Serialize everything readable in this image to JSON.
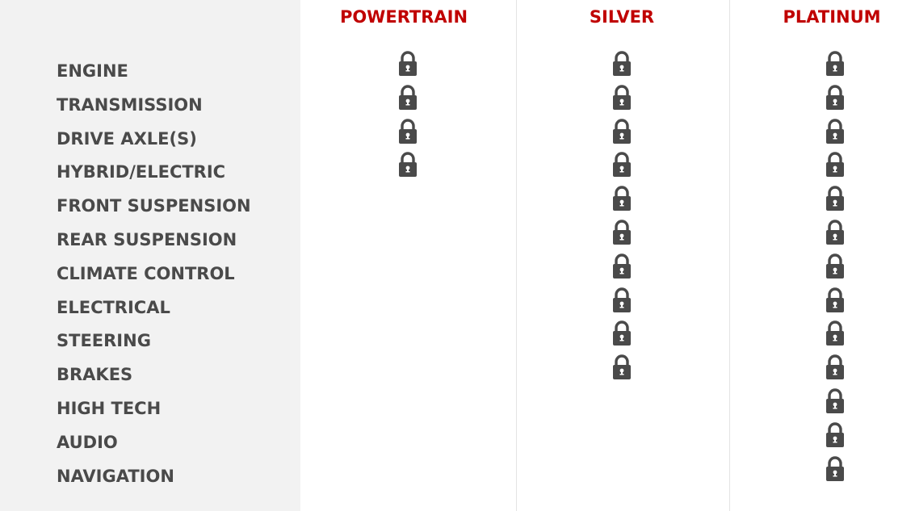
{
  "plans": [
    {
      "name": "POWERTRAIN"
    },
    {
      "name": "SILVER"
    },
    {
      "name": "PLATINUM"
    }
  ],
  "colors": {
    "header": "#c00000",
    "icon": "#4a4a4a",
    "panel": "#f2f2f2"
  },
  "icon": "lock-icon",
  "rows": [
    {
      "label": "ENGINE",
      "covered": [
        true,
        true,
        true
      ]
    },
    {
      "label": "TRANSMISSION",
      "covered": [
        true,
        true,
        true
      ]
    },
    {
      "label": "DRIVE AXLE(S)",
      "covered": [
        true,
        true,
        true
      ]
    },
    {
      "label": "HYBRID/ELECTRIC",
      "covered": [
        true,
        true,
        true
      ]
    },
    {
      "label": "FRONT SUSPENSION",
      "covered": [
        false,
        true,
        true
      ]
    },
    {
      "label": "REAR SUSPENSION",
      "covered": [
        false,
        true,
        true
      ]
    },
    {
      "label": "CLIMATE CONTROL",
      "covered": [
        false,
        true,
        true
      ]
    },
    {
      "label": "ELECTRICAL",
      "covered": [
        false,
        true,
        true
      ]
    },
    {
      "label": "STEERING",
      "covered": [
        false,
        true,
        true
      ]
    },
    {
      "label": "BRAKES",
      "covered": [
        false,
        true,
        true
      ]
    },
    {
      "label": "HIGH TECH",
      "covered": [
        false,
        false,
        true
      ]
    },
    {
      "label": "AUDIO",
      "covered": [
        false,
        false,
        true
      ]
    },
    {
      "label": "NAVIGATION",
      "covered": [
        false,
        false,
        true
      ]
    }
  ]
}
